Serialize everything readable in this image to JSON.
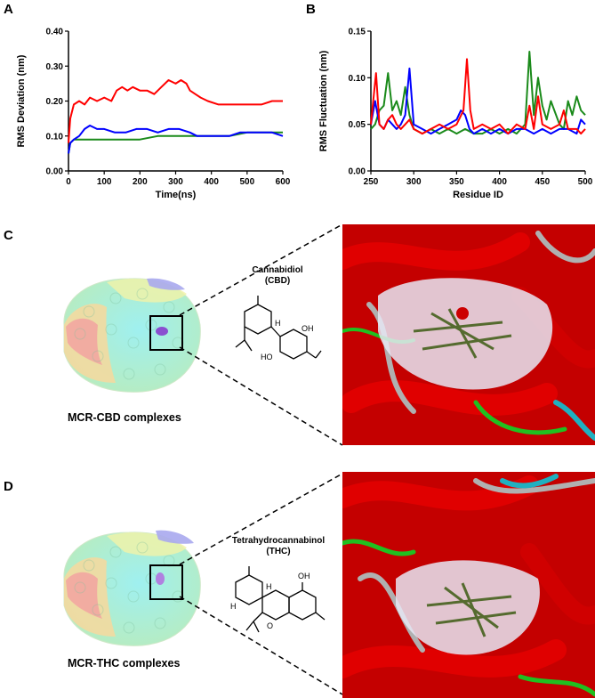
{
  "panels": {
    "A": "A",
    "B": "B",
    "C": "C",
    "D": "D"
  },
  "chart_data": [
    {
      "type": "line",
      "xlabel": "Time(ns)",
      "ylabel": "RMS Deviation (nm)",
      "xlim": [
        0,
        600
      ],
      "ylim": [
        0,
        0.4
      ],
      "xticks": [
        "0",
        "100",
        "200",
        "300",
        "400",
        "500",
        "600"
      ],
      "yticks": [
        "0.00",
        "0.10",
        "0.20",
        "0.30",
        "0.40"
      ],
      "colors": [
        "#ff0000",
        "#0000ff",
        "#1a8a1a"
      ],
      "series": [
        {
          "x": [
            0,
            5,
            15,
            30,
            45,
            60,
            80,
            100,
            120,
            135,
            150,
            165,
            180,
            200,
            220,
            240,
            260,
            280,
            300,
            315,
            330,
            340,
            355,
            370,
            390,
            420,
            450,
            480,
            510,
            540,
            570,
            600
          ],
          "values": [
            0.08,
            0.15,
            0.19,
            0.2,
            0.19,
            0.21,
            0.2,
            0.21,
            0.2,
            0.23,
            0.24,
            0.23,
            0.24,
            0.23,
            0.23,
            0.22,
            0.24,
            0.26,
            0.25,
            0.26,
            0.25,
            0.23,
            0.22,
            0.21,
            0.2,
            0.19,
            0.19,
            0.19,
            0.19,
            0.19,
            0.2,
            0.2
          ]
        },
        {
          "x": [
            0,
            5,
            15,
            30,
            45,
            60,
            80,
            100,
            130,
            160,
            190,
            220,
            250,
            280,
            310,
            340,
            360,
            390,
            420,
            450,
            480,
            510,
            540,
            570,
            600
          ],
          "values": [
            0.05,
            0.08,
            0.09,
            0.1,
            0.12,
            0.13,
            0.12,
            0.12,
            0.11,
            0.11,
            0.12,
            0.12,
            0.11,
            0.12,
            0.12,
            0.11,
            0.1,
            0.1,
            0.1,
            0.1,
            0.11,
            0.11,
            0.11,
            0.11,
            0.1
          ]
        },
        {
          "x": [
            0,
            5,
            15,
            30,
            60,
            100,
            150,
            200,
            250,
            300,
            350,
            400,
            450,
            500,
            550,
            600
          ],
          "values": [
            0.05,
            0.08,
            0.09,
            0.09,
            0.09,
            0.09,
            0.09,
            0.09,
            0.1,
            0.1,
            0.1,
            0.1,
            0.1,
            0.11,
            0.11,
            0.11
          ]
        }
      ]
    },
    {
      "type": "line",
      "xlabel": "Residue ID",
      "ylabel": "RMS Fluctuation (nm)",
      "xlim": [
        250,
        500
      ],
      "ylim": [
        0,
        0.15
      ],
      "xticks": [
        "250",
        "300",
        "350",
        "400",
        "450",
        "500"
      ],
      "yticks": [
        "0.00",
        "0.05",
        "0.10",
        "0.15"
      ],
      "colors": [
        "#ff0000",
        "#0000ff",
        "#1a8a1a"
      ],
      "series": [
        {
          "x": [
            250,
            256,
            260,
            265,
            270,
            275,
            280,
            285,
            290,
            295,
            300,
            310,
            320,
            330,
            340,
            350,
            358,
            362,
            366,
            370,
            380,
            390,
            400,
            410,
            420,
            430,
            435,
            440,
            445,
            450,
            460,
            470,
            475,
            480,
            490,
            495,
            500
          ],
          "values": [
            0.05,
            0.105,
            0.05,
            0.045,
            0.055,
            0.06,
            0.05,
            0.045,
            0.05,
            0.055,
            0.045,
            0.04,
            0.045,
            0.05,
            0.045,
            0.05,
            0.065,
            0.12,
            0.065,
            0.045,
            0.05,
            0.045,
            0.05,
            0.04,
            0.05,
            0.045,
            0.07,
            0.045,
            0.08,
            0.05,
            0.045,
            0.05,
            0.065,
            0.045,
            0.045,
            0.04,
            0.045
          ]
        },
        {
          "x": [
            250,
            255,
            260,
            265,
            270,
            275,
            280,
            285,
            290,
            295,
            300,
            310,
            320,
            330,
            340,
            350,
            355,
            360,
            365,
            370,
            380,
            390,
            400,
            410,
            420,
            430,
            440,
            450,
            460,
            470,
            480,
            490,
            495,
            500
          ],
          "values": [
            0.05,
            0.075,
            0.05,
            0.045,
            0.055,
            0.05,
            0.045,
            0.05,
            0.06,
            0.11,
            0.05,
            0.045,
            0.04,
            0.045,
            0.05,
            0.055,
            0.065,
            0.06,
            0.045,
            0.04,
            0.045,
            0.04,
            0.045,
            0.04,
            0.045,
            0.045,
            0.04,
            0.045,
            0.04,
            0.045,
            0.045,
            0.04,
            0.055,
            0.05
          ]
        },
        {
          "x": [
            250,
            255,
            260,
            265,
            270,
            275,
            280,
            285,
            290,
            295,
            300,
            310,
            320,
            330,
            340,
            350,
            360,
            370,
            380,
            390,
            400,
            410,
            420,
            430,
            435,
            440,
            445,
            450,
            455,
            460,
            470,
            475,
            480,
            485,
            490,
            495,
            500
          ],
          "values": [
            0.045,
            0.05,
            0.065,
            0.07,
            0.105,
            0.065,
            0.075,
            0.06,
            0.09,
            0.06,
            0.045,
            0.04,
            0.045,
            0.04,
            0.045,
            0.04,
            0.045,
            0.04,
            0.04,
            0.045,
            0.04,
            0.045,
            0.04,
            0.05,
            0.128,
            0.06,
            0.1,
            0.07,
            0.055,
            0.075,
            0.05,
            0.045,
            0.075,
            0.06,
            0.08,
            0.065,
            0.06
          ]
        }
      ]
    }
  ],
  "figure": {
    "cbd_name_line1": "Cannabidiol",
    "cbd_name_line2": "(CBD)",
    "cbd_caption": "MCR-CBD complexes",
    "thc_name_line1": "Tetrahydrocannabinol",
    "thc_name_line2": "(THC)",
    "thc_caption": "MCR-THC complexes",
    "cbd_atoms": {
      "h": "H",
      "oh1": "OH",
      "ho": "HO"
    },
    "thc_atoms": {
      "h": "H",
      "h2": "H",
      "oh": "OH",
      "o": "O"
    }
  }
}
